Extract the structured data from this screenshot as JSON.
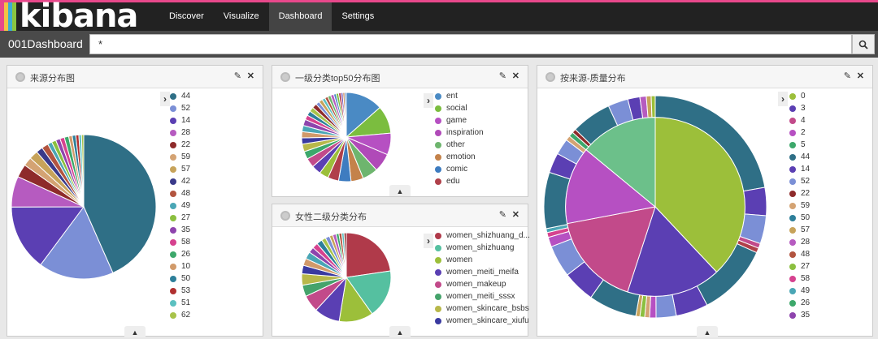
{
  "app": {
    "logo_text": "kibana"
  },
  "nav": [
    {
      "label": "Discover"
    },
    {
      "label": "Visualize"
    },
    {
      "label": "Dashboard"
    },
    {
      "label": "Settings"
    }
  ],
  "dashboard": {
    "title": "001Dashboard",
    "query_value": "*"
  },
  "panels": [
    {
      "title": "来源分布图",
      "legend": [
        {
          "label": "44",
          "color": "#2f6f86"
        },
        {
          "label": "52",
          "color": "#7b8fd6"
        },
        {
          "label": "14",
          "color": "#5b3fb3"
        },
        {
          "label": "28",
          "color": "#b65bc0"
        },
        {
          "label": "22",
          "color": "#8e2b2b"
        },
        {
          "label": "59",
          "color": "#d4a373"
        },
        {
          "label": "57",
          "color": "#c7a35a"
        },
        {
          "label": "42",
          "color": "#3a3a8a"
        },
        {
          "label": "48",
          "color": "#b2543f"
        },
        {
          "label": "49",
          "color": "#4aa6b5"
        },
        {
          "label": "27",
          "color": "#8bbf3f"
        },
        {
          "label": "35",
          "color": "#8e44ad"
        },
        {
          "label": "58",
          "color": "#d6428f"
        },
        {
          "label": "26",
          "color": "#3da86b"
        },
        {
          "label": "10",
          "color": "#d19a6a"
        },
        {
          "label": "50",
          "color": "#2d7f9a"
        },
        {
          "label": "53",
          "color": "#b03030"
        },
        {
          "label": "51",
          "color": "#5bc0c0"
        },
        {
          "label": "62",
          "color": "#a8c34a"
        }
      ]
    },
    {
      "title": "一级分类top50分布图",
      "legend": [
        {
          "label": "ent",
          "color": "#4a8ac4"
        },
        {
          "label": "social",
          "color": "#7bbd3f"
        },
        {
          "label": "game",
          "color": "#b650c2"
        },
        {
          "label": "inspiration",
          "color": "#b04ab8"
        },
        {
          "label": "other",
          "color": "#6eb56e"
        },
        {
          "label": "emotion",
          "color": "#c4824a"
        },
        {
          "label": "comic",
          "color": "#3e7cc0"
        },
        {
          "label": "edu",
          "color": "#b0404a"
        }
      ]
    },
    {
      "title": "女性二级分类分布",
      "legend": [
        {
          "label": "women_shizhuang_d...",
          "color": "#b03a4a"
        },
        {
          "label": "women_shizhuang",
          "color": "#55c0a0"
        },
        {
          "label": "women",
          "color": "#9cbf3a"
        },
        {
          "label": "women_meiti_meifa",
          "color": "#5a3fb3"
        },
        {
          "label": "women_makeup",
          "color": "#c24a8a"
        },
        {
          "label": "women_meiti_sssx",
          "color": "#45a36b"
        },
        {
          "label": "women_skincare_bsbs",
          "color": "#b8b84a"
        },
        {
          "label": "women_skincare_xiufu",
          "color": "#3a3aa0"
        }
      ]
    },
    {
      "title": "按来源-质量分布",
      "legend": [
        {
          "label": "0",
          "color": "#9cbf3a"
        },
        {
          "label": "3",
          "color": "#5b3fb3"
        },
        {
          "label": "4",
          "color": "#c24a8a"
        },
        {
          "label": "2",
          "color": "#b650c2"
        },
        {
          "label": "5",
          "color": "#3da86b"
        },
        {
          "label": "44",
          "color": "#2f6f86"
        },
        {
          "label": "14",
          "color": "#5b3fb3"
        },
        {
          "label": "52",
          "color": "#7b8fd6"
        },
        {
          "label": "22",
          "color": "#8e2b2b"
        },
        {
          "label": "59",
          "color": "#d4a373"
        },
        {
          "label": "50",
          "color": "#2d7f9a"
        },
        {
          "label": "57",
          "color": "#c7a35a"
        },
        {
          "label": "28",
          "color": "#b65bc0"
        },
        {
          "label": "48",
          "color": "#b2543f"
        },
        {
          "label": "27",
          "color": "#8bbf3f"
        },
        {
          "label": "58",
          "color": "#d6428f"
        },
        {
          "label": "49",
          "color": "#4aa6b5"
        },
        {
          "label": "26",
          "color": "#3da86b"
        },
        {
          "label": "35",
          "color": "#8e44ad"
        }
      ]
    }
  ],
  "chart_data": [
    {
      "type": "pie",
      "slices": [
        {
          "color": "#2f6f86",
          "value": 44
        },
        {
          "color": "#7b8fd6",
          "value": 17
        },
        {
          "color": "#5b3fb3",
          "value": 15
        },
        {
          "color": "#b65bc0",
          "value": 7
        },
        {
          "color": "#8e2b2b",
          "value": 3
        },
        {
          "color": "#d4a373",
          "value": 2
        },
        {
          "color": "#c7a35a",
          "value": 2
        },
        {
          "color": "#3a3a8a",
          "value": 1.5
        },
        {
          "color": "#b2543f",
          "value": 1.5
        },
        {
          "color": "#4aa6b5",
          "value": 1
        },
        {
          "color": "#8bbf3f",
          "value": 1
        },
        {
          "color": "#8e44ad",
          "value": 1
        },
        {
          "color": "#d6428f",
          "value": 1
        },
        {
          "color": "#3da86b",
          "value": 1
        },
        {
          "color": "#d19a6a",
          "value": 0.8
        },
        {
          "color": "#2d7f9a",
          "value": 0.8
        },
        {
          "color": "#b03030",
          "value": 0.7
        },
        {
          "color": "#5bc0c0",
          "value": 0.6
        },
        {
          "color": "#a8c34a",
          "value": 0.5
        }
      ]
    },
    {
      "type": "pie",
      "slices": [
        {
          "color": "#4a8ac4",
          "value": 12
        },
        {
          "color": "#7bbd3f",
          "value": 9
        },
        {
          "color": "#b650c2",
          "value": 7
        },
        {
          "color": "#b04ab8",
          "value": 6
        },
        {
          "color": "#6eb56e",
          "value": 5
        },
        {
          "color": "#c4824a",
          "value": 4
        },
        {
          "color": "#3e7cc0",
          "value": 4
        },
        {
          "color": "#b0404a",
          "value": 3.5
        },
        {
          "color": "#9cbf3a",
          "value": 3
        },
        {
          "color": "#5b3fb3",
          "value": 3
        },
        {
          "color": "#c24a8a",
          "value": 3
        },
        {
          "color": "#3da86b",
          "value": 2.5
        },
        {
          "color": "#b8b84a",
          "value": 2.5
        },
        {
          "color": "#3a3aa0",
          "value": 2
        },
        {
          "color": "#d19a6a",
          "value": 2
        },
        {
          "color": "#4aa6b5",
          "value": 2
        },
        {
          "color": "#8e44ad",
          "value": 2
        },
        {
          "color": "#d6428f",
          "value": 1.5
        },
        {
          "color": "#2d7f9a",
          "value": 1.5
        },
        {
          "color": "#a8c34a",
          "value": 1.5
        },
        {
          "color": "#8e2b2b",
          "value": 1.5
        },
        {
          "color": "#7b8fd6",
          "value": 1.2
        },
        {
          "color": "#c7a35a",
          "value": 1.2
        },
        {
          "color": "#5bc0c0",
          "value": 1
        },
        {
          "color": "#b2543f",
          "value": 1
        },
        {
          "color": "#6eb56e",
          "value": 1
        },
        {
          "color": "#b65bc0",
          "value": 1
        },
        {
          "color": "#4a8ac4",
          "value": 0.8
        },
        {
          "color": "#7bbd3f",
          "value": 0.8
        },
        {
          "color": "#b03a4a",
          "value": 0.8
        },
        {
          "color": "#5b3fb3",
          "value": 0.6
        },
        {
          "color": "#c4824a",
          "value": 0.6
        },
        {
          "color": "#3e7cc0",
          "value": 0.5
        }
      ]
    },
    {
      "type": "pie",
      "slices": [
        {
          "color": "#b03a4a",
          "value": 22
        },
        {
          "color": "#55c0a0",
          "value": 17
        },
        {
          "color": "#9cbf3a",
          "value": 12
        },
        {
          "color": "#5a3fb3",
          "value": 9
        },
        {
          "color": "#c24a8a",
          "value": 6
        },
        {
          "color": "#45a36b",
          "value": 4
        },
        {
          "color": "#b8b84a",
          "value": 4
        },
        {
          "color": "#3a3aa0",
          "value": 3
        },
        {
          "color": "#d19a6a",
          "value": 2.5
        },
        {
          "color": "#4aa6b5",
          "value": 2.5
        },
        {
          "color": "#8e44ad",
          "value": 2
        },
        {
          "color": "#d6428f",
          "value": 2
        },
        {
          "color": "#2d7f9a",
          "value": 2
        },
        {
          "color": "#a8c34a",
          "value": 1.5
        },
        {
          "color": "#7b8fd6",
          "value": 1.5
        },
        {
          "color": "#c7a35a",
          "value": 1.2
        },
        {
          "color": "#b65bc0",
          "value": 1.2
        },
        {
          "color": "#3da86b",
          "value": 1
        },
        {
          "color": "#b2543f",
          "value": 1
        },
        {
          "color": "#5bc0c0",
          "value": 0.8
        },
        {
          "color": "#8e2b2b",
          "value": 0.8
        }
      ]
    },
    {
      "type": "pie",
      "inner_slices": [
        {
          "color": "#9cbf3a",
          "value": 38
        },
        {
          "color": "#5b3fb3",
          "value": 17
        },
        {
          "color": "#c24a8a",
          "value": 17
        },
        {
          "color": "#b650c2",
          "value": 14
        },
        {
          "color": "#6cc08a",
          "value": 14
        }
      ],
      "outer_slices": [
        {
          "color": "#2f6f86",
          "value": 19
        },
        {
          "color": "#5b3fb3",
          "value": 3.5
        },
        {
          "color": "#7b8fd6",
          "value": 3.5
        },
        {
          "color": "#c24a8a",
          "value": 0.6
        },
        {
          "color": "#b0404a",
          "value": 0.6
        },
        {
          "color": "#2f6f86",
          "value": 9
        },
        {
          "color": "#5b3fb3",
          "value": 4
        },
        {
          "color": "#7b8fd6",
          "value": 2.5
        },
        {
          "color": "#b650c2",
          "value": 0.8
        },
        {
          "color": "#d4a373",
          "value": 0.6
        },
        {
          "color": "#8bbf3f",
          "value": 0.6
        },
        {
          "color": "#c7a35a",
          "value": 0.5
        },
        {
          "color": "#2f6f86",
          "value": 6
        },
        {
          "color": "#5b3fb3",
          "value": 4
        },
        {
          "color": "#7b8fd6",
          "value": 4
        },
        {
          "color": "#b650c2",
          "value": 1.2
        },
        {
          "color": "#d6428f",
          "value": 0.6
        },
        {
          "color": "#4aa6b5",
          "value": 0.5
        },
        {
          "color": "#2f6f86",
          "value": 7
        },
        {
          "color": "#5b3fb3",
          "value": 2.5
        },
        {
          "color": "#7b8fd6",
          "value": 2
        },
        {
          "color": "#d4a373",
          "value": 0.6
        },
        {
          "color": "#3da86b",
          "value": 0.6
        },
        {
          "color": "#8e2b2b",
          "value": 0.5
        },
        {
          "color": "#2f6f86",
          "value": 5
        },
        {
          "color": "#7b8fd6",
          "value": 2.5
        },
        {
          "color": "#5b3fb3",
          "value": 1.5
        },
        {
          "color": "#b65bc0",
          "value": 0.8
        },
        {
          "color": "#c7a35a",
          "value": 0.6
        },
        {
          "color": "#9cbf3a",
          "value": 0.5
        }
      ]
    }
  ]
}
